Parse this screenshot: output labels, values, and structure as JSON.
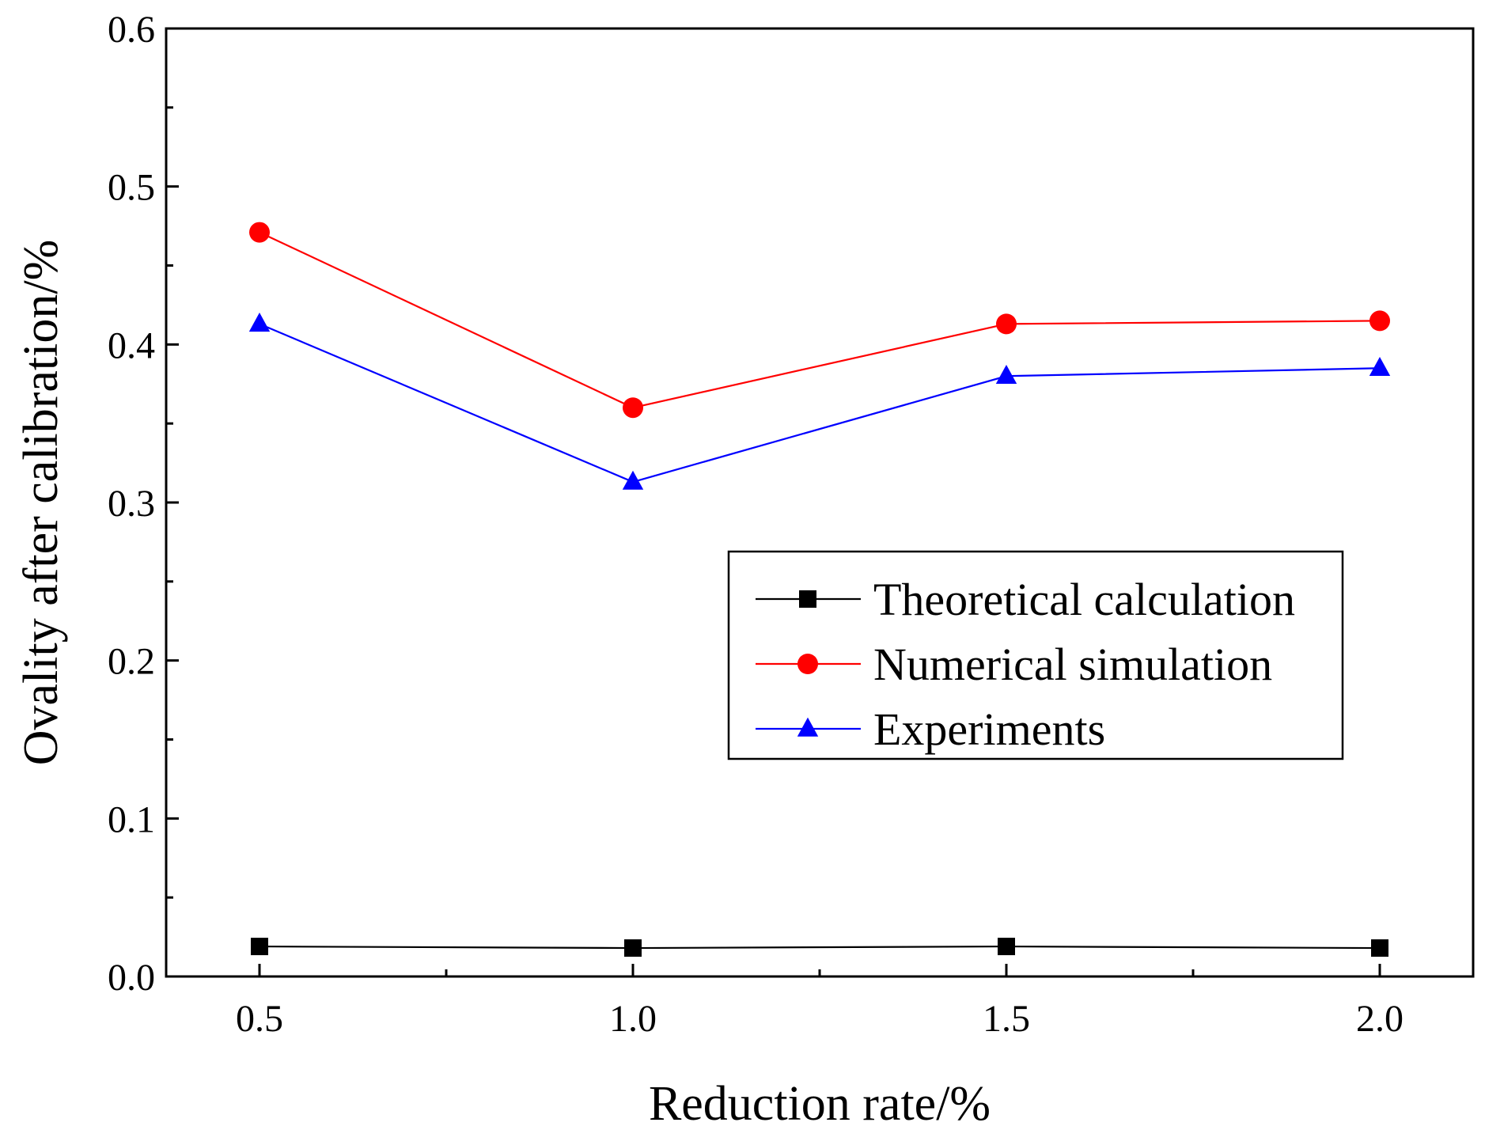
{
  "chart_data": {
    "type": "line",
    "title": "",
    "xlabel": "Reduction rate/%",
    "ylabel": "Ovality after calibration/%",
    "x": [
      0.5,
      1.0,
      1.5,
      2.0
    ],
    "xlim": [
      0.375,
      2.125
    ],
    "ylim": [
      0.0,
      0.6
    ],
    "xticks": [
      0.5,
      1.0,
      1.5,
      2.0
    ],
    "xtick_labels": [
      "0.5",
      "1.0",
      "1.5",
      "2.0"
    ],
    "yticks": [
      0.0,
      0.1,
      0.2,
      0.3,
      0.4,
      0.5,
      0.6
    ],
    "ytick_labels": [
      "0.0",
      "0.1",
      "0.2",
      "0.3",
      "0.4",
      "0.5",
      "0.6"
    ],
    "grid": false,
    "legend_position": "center-right",
    "series": [
      {
        "name": "Theoretical calculation",
        "values": [
          0.019,
          0.018,
          0.019,
          0.018
        ],
        "color": "#000000",
        "marker": "square"
      },
      {
        "name": "Numerical simulation",
        "values": [
          0.471,
          0.36,
          0.413,
          0.415
        ],
        "color": "#ff0000",
        "marker": "circle"
      },
      {
        "name": "Experiments",
        "values": [
          0.413,
          0.313,
          0.38,
          0.385
        ],
        "color": "#0000ff",
        "marker": "triangle"
      }
    ]
  }
}
